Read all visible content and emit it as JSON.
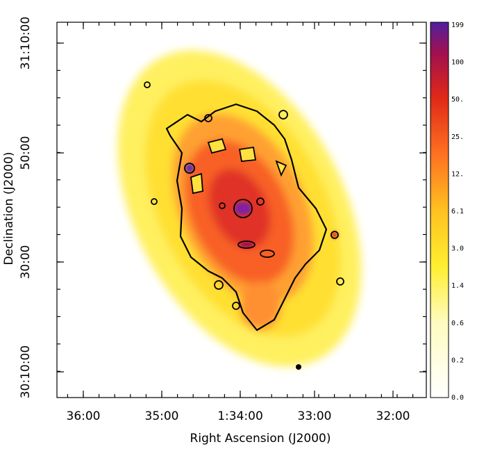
{
  "figure": {
    "xlabel": "Right Ascension (J2000)",
    "ylabel": "Declination (J2000)",
    "xticks": [
      "36:00",
      "35:00",
      "1:34:00",
      "33:00",
      "32:00"
    ],
    "yticks": [
      "31:10:00",
      "50:00",
      "30:00",
      "30:10:00"
    ],
    "colorbar": [
      "199",
      "100",
      "50.",
      "25.",
      "12.",
      "6.1",
      "3.0",
      "1.4",
      "0.6",
      "0.2",
      "0.0"
    ]
  }
}
